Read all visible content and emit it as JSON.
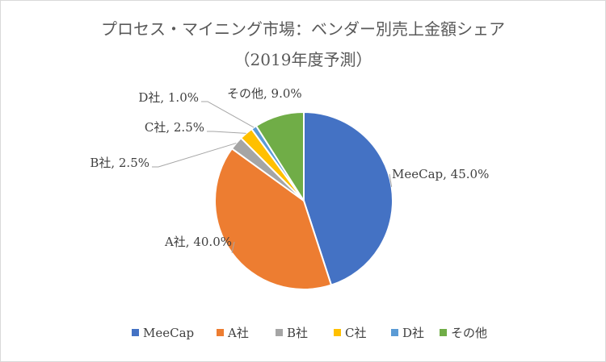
{
  "chart_data": {
    "type": "pie",
    "title": "プロセス・マイニング市場：ベンダー別売上金額シェア",
    "subtitle": "（2019年度予測）",
    "categories": [
      "MeeCap",
      "A社",
      "B社",
      "C社",
      "D社",
      "その他"
    ],
    "values": [
      45.0,
      40.0,
      2.5,
      2.5,
      1.0,
      9.0
    ],
    "unit": "%",
    "data_labels": [
      "MeeCap, 45.0%",
      "A社, 40.0%",
      "B社, 2.5%",
      "C社, 2.5%",
      "D社, 1.0%",
      "その他, 9.0%"
    ],
    "colors": [
      "#4472C4",
      "#ED7D31",
      "#A5A5A5",
      "#FFC000",
      "#5B9BD5",
      "#70AD47"
    ],
    "legend_position": "bottom",
    "start_angle": "12 o'clock",
    "direction": "clockwise"
  }
}
